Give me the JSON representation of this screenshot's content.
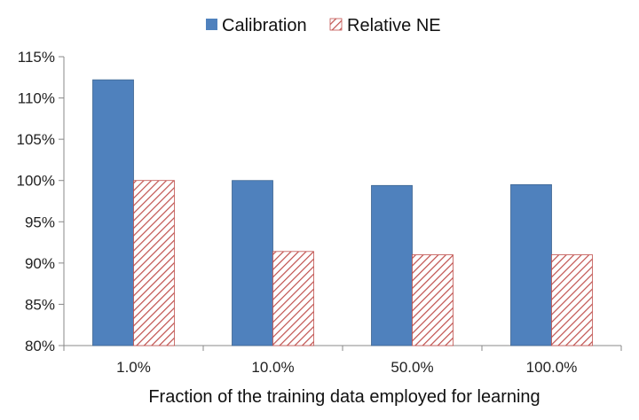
{
  "chart_data": {
    "type": "bar",
    "title": "",
    "xlabel": "Fraction of the training data employed for learning",
    "ylabel": "",
    "categories": [
      "1.0%",
      "10.0%",
      "50.0%",
      "100.0%"
    ],
    "y_ticks": [
      80,
      85,
      90,
      95,
      100,
      105,
      110,
      115
    ],
    "y_tick_labels": [
      "80%",
      "85%",
      "90%",
      "95%",
      "100%",
      "105%",
      "110%",
      "115%"
    ],
    "ylim": [
      80,
      115
    ],
    "grid": false,
    "legend_position": "top-center",
    "series": [
      {
        "name": "Calibration",
        "values": [
          112.2,
          100.0,
          99.4,
          99.5
        ],
        "color": "#4f81bd",
        "style": "solid"
      },
      {
        "name": "Relative NE",
        "values": [
          100.0,
          91.4,
          91.0,
          91.0
        ],
        "color": "#c0504d",
        "style": "hatched"
      }
    ]
  }
}
